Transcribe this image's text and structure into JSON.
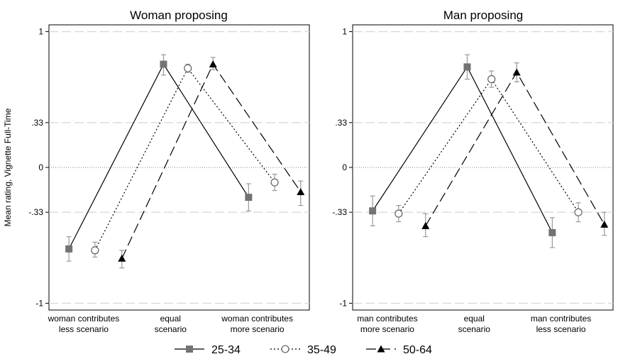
{
  "ylabel": "Mean rating, Vignette Full-Time",
  "legend": [
    {
      "label": "25-34",
      "marker": "square",
      "dash": "solid"
    },
    {
      "label": "35-49",
      "marker": "circle",
      "dash": "dotted"
    },
    {
      "label": "50-64",
      "marker": "triangle",
      "dash": "longdash"
    }
  ],
  "chart_data": [
    {
      "type": "line",
      "title": "Woman proposing",
      "xlabel": "",
      "ylabel": "Mean rating, Vignette Full-Time",
      "ylim": [
        -1.05,
        1.05
      ],
      "yticks": [
        {
          "value": 1,
          "label": "1"
        },
        {
          "value": 0.33,
          "label": ".33"
        },
        {
          "value": 0,
          "label": "0"
        },
        {
          "value": -0.33,
          "label": "-.33"
        },
        {
          "value": -1,
          "label": "-1"
        }
      ],
      "categories": [
        [
          "woman contributes",
          "less scenario"
        ],
        [
          "equal",
          "scenario"
        ],
        [
          "woman contributes",
          "more scenario"
        ]
      ],
      "grid": true,
      "legend_position": "bottom",
      "series": [
        {
          "name": "25-34",
          "x": [
            0.83,
            1.92,
            2.9
          ],
          "values": [
            -0.6,
            0.76,
            -0.22
          ],
          "ci_low": [
            -0.69,
            0.68,
            -0.32
          ],
          "ci_high": [
            -0.51,
            0.83,
            -0.12
          ]
        },
        {
          "name": "35-49",
          "x": [
            1.13,
            2.2,
            3.2
          ],
          "values": [
            -0.61,
            0.73,
            -0.11
          ],
          "ci_low": [
            -0.66,
            0.7,
            -0.17
          ],
          "ci_high": [
            -0.55,
            0.76,
            -0.05
          ]
        },
        {
          "name": "50-64",
          "x": [
            1.44,
            2.49,
            3.5
          ],
          "values": [
            -0.67,
            0.76,
            -0.18
          ],
          "ci_low": [
            -0.74,
            0.72,
            -0.28
          ],
          "ci_high": [
            -0.61,
            0.81,
            -0.1
          ]
        }
      ]
    },
    {
      "type": "line",
      "title": "Man proposing",
      "xlabel": "",
      "ylim": [
        -1.05,
        1.05
      ],
      "yticks": [
        {
          "value": 1,
          "label": "1"
        },
        {
          "value": 0.33,
          "label": ".33"
        },
        {
          "value": 0,
          "label": "0"
        },
        {
          "value": -0.33,
          "label": "-.33"
        },
        {
          "value": -1,
          "label": "-1"
        }
      ],
      "categories": [
        [
          "man contributes",
          "more scenario"
        ],
        [
          "equal",
          "scenario"
        ],
        [
          "man contributes",
          "less scenario"
        ]
      ],
      "grid": true,
      "legend_position": "bottom",
      "series": [
        {
          "name": "25-34",
          "x": [
            0.83,
            1.92,
            2.9
          ],
          "values": [
            -0.32,
            0.74,
            -0.48
          ],
          "ci_low": [
            -0.43,
            0.65,
            -0.59
          ],
          "ci_high": [
            -0.21,
            0.83,
            -0.37
          ]
        },
        {
          "name": "35-49",
          "x": [
            1.13,
            2.2,
            3.2
          ],
          "values": [
            -0.34,
            0.65,
            -0.33
          ],
          "ci_low": [
            -0.4,
            0.59,
            -0.4
          ],
          "ci_high": [
            -0.28,
            0.71,
            -0.26
          ]
        },
        {
          "name": "50-64",
          "x": [
            1.44,
            2.49,
            3.5
          ],
          "values": [
            -0.43,
            0.7,
            -0.42
          ],
          "ci_low": [
            -0.51,
            0.63,
            -0.5
          ],
          "ci_high": [
            -0.34,
            0.77,
            -0.33
          ]
        }
      ]
    }
  ]
}
